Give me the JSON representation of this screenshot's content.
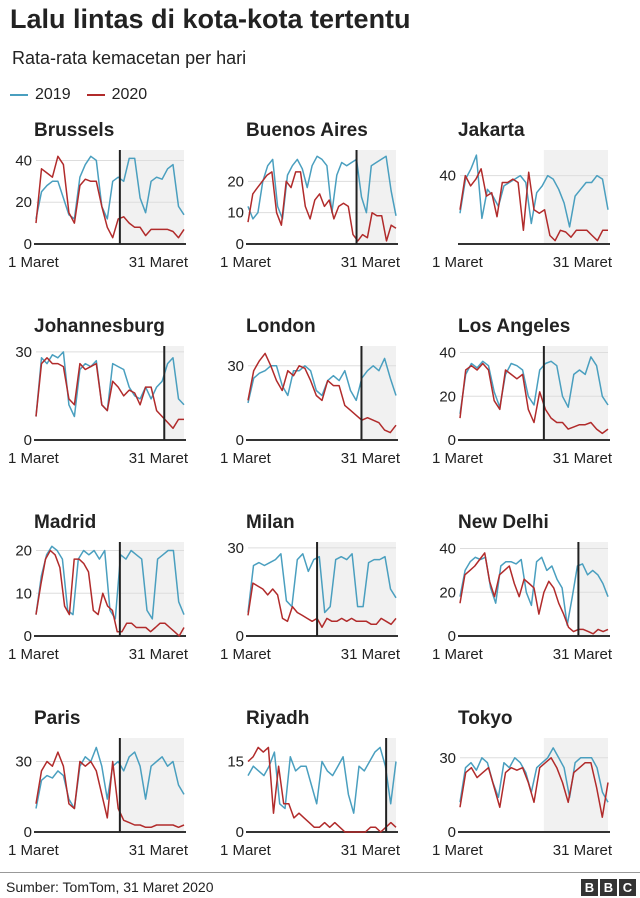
{
  "title": "Lalu lintas di kota-kota tertentu",
  "subtitle": "Rata-rata kemacetan per hari",
  "legend": [
    {
      "label": "2019",
      "color": "#4a9fbf"
    },
    {
      "label": "2020",
      "color": "#b12b2b"
    }
  ],
  "source": "Sumber: TomTom, 31 Maret 2020",
  "logo_letters": [
    "B",
    "B",
    "C"
  ],
  "colors": {
    "series_2019": "#4a9fbf",
    "series_2020": "#b12b2b",
    "shade": "#f1f1f1",
    "grid": "#dddddd",
    "axis": "#333333",
    "marker": "#222222"
  },
  "chart_data": [
    {
      "type": "line",
      "title": "Brussels",
      "ylim": [
        0,
        45
      ],
      "yticks": [
        0,
        20,
        40
      ],
      "xlabels": [
        "1 Maret",
        "31 Maret"
      ],
      "marker_day": 17,
      "series": [
        {
          "name": "2019",
          "values": [
            12,
            25,
            28,
            30,
            30,
            22,
            14,
            12,
            32,
            38,
            42,
            40,
            18,
            12,
            30,
            32,
            30,
            41,
            41,
            22,
            15,
            30,
            32,
            31,
            36,
            38,
            18,
            14
          ]
        },
        {
          "name": "2020",
          "values": [
            10,
            36,
            34,
            32,
            42,
            38,
            15,
            10,
            28,
            31,
            30,
            30,
            18,
            8,
            3,
            12,
            13,
            10,
            8,
            8,
            4,
            7,
            7,
            7,
            7,
            6,
            3,
            7
          ]
        }
      ]
    },
    {
      "type": "line",
      "title": "Buenos Aires",
      "ylim": [
        0,
        30
      ],
      "yticks": [
        0,
        10,
        20
      ],
      "xlabels": [
        "1 Maret",
        "31 Maret"
      ],
      "marker_day": 22,
      "series": [
        {
          "name": "2019",
          "values": [
            12,
            8,
            10,
            20,
            25,
            27,
            12,
            8,
            22,
            25,
            27,
            24,
            18,
            25,
            28,
            27,
            25,
            10,
            22,
            26,
            25,
            26,
            27,
            15,
            10,
            25,
            26,
            27,
            28,
            17,
            9
          ]
        },
        {
          "name": "2020",
          "values": [
            7,
            16,
            18,
            20,
            22,
            23,
            10,
            6,
            20,
            18,
            23,
            23,
            12,
            8,
            14,
            16,
            12,
            14,
            8,
            12,
            13,
            12,
            3,
            1,
            3,
            2,
            10,
            9,
            9,
            1,
            6,
            5
          ]
        }
      ]
    },
    {
      "type": "line",
      "title": "Jakarta",
      "ylim": [
        0,
        55
      ],
      "yticks": [
        40
      ],
      "xlabels": [
        "1 Maret",
        "31 Maret"
      ],
      "marker_day": null,
      "series": [
        {
          "name": "2019",
          "values": [
            18,
            38,
            44,
            52,
            15,
            32,
            28,
            22,
            34,
            36,
            38,
            40,
            36,
            12,
            30,
            34,
            40,
            38,
            32,
            24,
            10,
            28,
            32,
            36,
            36,
            40,
            38,
            20
          ]
        },
        {
          "name": "2020",
          "values": [
            20,
            40,
            34,
            38,
            44,
            28,
            30,
            16,
            36,
            36,
            38,
            36,
            8,
            42,
            20,
            18,
            20,
            5,
            2,
            8,
            7,
            4,
            8,
            8,
            8,
            5,
            2,
            8,
            8
          ]
        }
      ]
    },
    {
      "type": "line",
      "title": "Johannesburg",
      "ylim": [
        0,
        32
      ],
      "yticks": [
        0,
        30
      ],
      "xlabels": [
        "1 Maret",
        "31 Maret"
      ],
      "marker_day": 26,
      "series": [
        {
          "name": "2019",
          "values": [
            8,
            28,
            26,
            29,
            28,
            30,
            12,
            8,
            24,
            26,
            25,
            27,
            12,
            10,
            26,
            25,
            24,
            18,
            15,
            14,
            18,
            14,
            18,
            20,
            26,
            28,
            14,
            12
          ]
        },
        {
          "name": "2020",
          "values": [
            8,
            26,
            28,
            26,
            26,
            25,
            14,
            12,
            26,
            24,
            25,
            26,
            12,
            10,
            20,
            18,
            15,
            17,
            16,
            12,
            18,
            18,
            10,
            8,
            6,
            4,
            7,
            7
          ]
        }
      ]
    },
    {
      "type": "line",
      "title": "London",
      "ylim": [
        0,
        38
      ],
      "yticks": [
        0,
        30
      ],
      "xlabels": [
        "1 Maret",
        "31 Maret"
      ],
      "marker_day": 23,
      "series": [
        {
          "name": "2019",
          "values": [
            15,
            25,
            27,
            28,
            30,
            30,
            22,
            18,
            28,
            28,
            30,
            28,
            20,
            18,
            24,
            26,
            24,
            28,
            20,
            16,
            25,
            28,
            30,
            28,
            33,
            25,
            18
          ]
        },
        {
          "name": "2020",
          "values": [
            16,
            28,
            32,
            35,
            30,
            24,
            20,
            28,
            26,
            30,
            29,
            24,
            18,
            16,
            24,
            22,
            22,
            14,
            12,
            10,
            8,
            9,
            8,
            7,
            4,
            3,
            6
          ]
        }
      ]
    },
    {
      "type": "line",
      "title": "Los Angeles",
      "ylim": [
        0,
        43
      ],
      "yticks": [
        0,
        20,
        40
      ],
      "xlabels": [
        "1 Maret",
        "31 Maret"
      ],
      "marker_day": 17,
      "series": [
        {
          "name": "2019",
          "values": [
            12,
            30,
            35,
            33,
            36,
            34,
            22,
            15,
            30,
            35,
            34,
            32,
            20,
            16,
            32,
            35,
            36,
            34,
            20,
            15,
            30,
            32,
            30,
            38,
            34,
            20,
            16
          ]
        },
        {
          "name": "2020",
          "values": [
            10,
            32,
            34,
            32,
            35,
            32,
            18,
            14,
            32,
            30,
            28,
            30,
            14,
            8,
            22,
            14,
            10,
            8,
            8,
            5,
            6,
            7,
            7,
            8,
            5,
            3,
            5
          ]
        }
      ]
    },
    {
      "type": "line",
      "title": "Madrid",
      "ylim": [
        0,
        22
      ],
      "yticks": [
        0,
        10,
        20
      ],
      "xlabels": [
        "1 Maret",
        "31 Maret"
      ],
      "marker_day": 17,
      "series": [
        {
          "name": "2019",
          "values": [
            5,
            14,
            19,
            21,
            20,
            18,
            6,
            5,
            18,
            20,
            19,
            20,
            18,
            20,
            6,
            4,
            19,
            18,
            20,
            19,
            18,
            6,
            4,
            18,
            19,
            20,
            20,
            8,
            5
          ]
        },
        {
          "name": "2020",
          "values": [
            5,
            12,
            18,
            20,
            19,
            16,
            7,
            5,
            18,
            18,
            17,
            15,
            6,
            5,
            10,
            7,
            6,
            1,
            1,
            3,
            3,
            2,
            2,
            2,
            1,
            2,
            3,
            3,
            2,
            1,
            0,
            2
          ]
        }
      ]
    },
    {
      "type": "line",
      "title": "Milan",
      "ylim": [
        0,
        32
      ],
      "yticks": [
        0,
        30
      ],
      "xlabels": [
        "1 Maret",
        "31 Maret"
      ],
      "marker_day": 14,
      "series": [
        {
          "name": "2019",
          "values": [
            8,
            24,
            25,
            24,
            25,
            26,
            28,
            12,
            10,
            26,
            28,
            22,
            26,
            27,
            8,
            10,
            26,
            27,
            26,
            28,
            10,
            10,
            25,
            26,
            26,
            27,
            16,
            13
          ]
        },
        {
          "name": "2020",
          "values": [
            7,
            18,
            17,
            16,
            14,
            16,
            14,
            6,
            5,
            10,
            8,
            7,
            6,
            5,
            6,
            3,
            6,
            5,
            5,
            6,
            5,
            6,
            5,
            5,
            5,
            4,
            4,
            6,
            5,
            4,
            6
          ]
        }
      ]
    },
    {
      "type": "line",
      "title": "New Delhi",
      "ylim": [
        0,
        43
      ],
      "yticks": [
        0,
        20,
        40
      ],
      "xlabels": [
        "1 Maret",
        "31 Maret"
      ],
      "marker_day": 24,
      "series": [
        {
          "name": "2019",
          "values": [
            18,
            30,
            34,
            36,
            35,
            36,
            22,
            15,
            32,
            34,
            34,
            33,
            35,
            20,
            14,
            34,
            36,
            30,
            32,
            26,
            22,
            5,
            18,
            32,
            33,
            28,
            30,
            28,
            24,
            18
          ]
        },
        {
          "name": "2020",
          "values": [
            15,
            28,
            30,
            32,
            35,
            38,
            25,
            18,
            28,
            30,
            32,
            24,
            18,
            26,
            24,
            22,
            10,
            20,
            25,
            22,
            15,
            10,
            4,
            2,
            3,
            3,
            2,
            1,
            3,
            2,
            3
          ]
        }
      ]
    },
    {
      "type": "line",
      "title": "Paris",
      "ylim": [
        0,
        40
      ],
      "yticks": [
        0,
        30
      ],
      "xlabels": [
        "1 Maret",
        "31 Maret"
      ],
      "marker_day": 17,
      "series": [
        {
          "name": "2019",
          "values": [
            10,
            22,
            24,
            23,
            26,
            24,
            14,
            10,
            28,
            32,
            30,
            36,
            28,
            14,
            28,
            30,
            26,
            32,
            34,
            28,
            14,
            28,
            30,
            32,
            28,
            30,
            20,
            16
          ]
        },
        {
          "name": "2020",
          "values": [
            12,
            26,
            30,
            28,
            34,
            28,
            12,
            10,
            30,
            28,
            30,
            26,
            16,
            6,
            30,
            10,
            5,
            4,
            3,
            3,
            2,
            2,
            3,
            3,
            3,
            3,
            2,
            3
          ]
        }
      ]
    },
    {
      "type": "line",
      "title": "Riyadh",
      "ylim": [
        0,
        20
      ],
      "yticks": [
        0,
        15
      ],
      "xlabels": [
        "1 Maret",
        "31 Maret"
      ],
      "marker_day": 28,
      "series": [
        {
          "name": "2019",
          "values": [
            12,
            14,
            13,
            12,
            14,
            17,
            6,
            5,
            16,
            13,
            14,
            14,
            10,
            6,
            15,
            13,
            12,
            14,
            16,
            8,
            4,
            14,
            13,
            15,
            17,
            18,
            14,
            6,
            15
          ]
        },
        {
          "name": "2020",
          "values": [
            15,
            16,
            18,
            17,
            18,
            4,
            14,
            6,
            6,
            3,
            4,
            3,
            2,
            1,
            1,
            2,
            1,
            2,
            1,
            0,
            0,
            0,
            0,
            0,
            1,
            1,
            0,
            1,
            2,
            1
          ]
        }
      ]
    },
    {
      "type": "line",
      "title": "Tokyo",
      "ylim": [
        0,
        38
      ],
      "yticks": [
        0,
        30
      ],
      "xlabels": [
        "1 Maret",
        "31 Maret"
      ],
      "marker_day": null,
      "series": [
        {
          "name": "2019",
          "values": [
            12,
            26,
            28,
            25,
            30,
            28,
            20,
            14,
            28,
            26,
            30,
            28,
            24,
            16,
            26,
            28,
            30,
            34,
            30,
            26,
            14,
            28,
            30,
            30,
            30,
            26,
            16,
            12
          ]
        },
        {
          "name": "2020",
          "values": [
            10,
            24,
            26,
            22,
            24,
            26,
            18,
            10,
            24,
            26,
            25,
            26,
            20,
            12,
            26,
            28,
            30,
            26,
            20,
            12,
            24,
            26,
            28,
            28,
            18,
            6,
            20
          ]
        }
      ]
    }
  ]
}
